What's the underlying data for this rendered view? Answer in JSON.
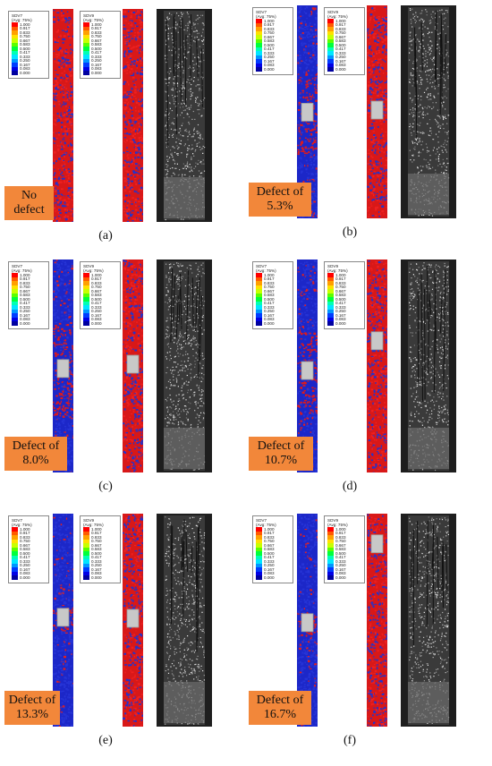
{
  "legend_scale": {
    "values": [
      "1.000",
      "0.917",
      "0.833",
      "0.750",
      "0.667",
      "0.583",
      "0.500",
      "0.417",
      "0.333",
      "0.250",
      "0.167",
      "0.083",
      "0.000"
    ],
    "colors": [
      "#ff0000",
      "#ff5a00",
      "#ffa000",
      "#ffe000",
      "#c8ff00",
      "#5aff00",
      "#00ff3c",
      "#00ffb4",
      "#00e6ff",
      "#0096ff",
      "#003cff",
      "#0000e6",
      "#0000a0"
    ],
    "avg_label": "(Avg: 75%)"
  },
  "panels": [
    {
      "id": "a",
      "sdv7_label": "SDV7",
      "sdv9_label": "SDV9",
      "defect_label": "No defect",
      "caption": "(a)",
      "has_defect": false,
      "red_band": [
        0.0,
        1.0
      ],
      "red_band_b": [
        0.0,
        1.0
      ],
      "sdv7_mostly_red": true
    },
    {
      "id": "b",
      "sdv7_label": "SDV7",
      "sdv9_label": "SDV9",
      "defect_label": "Defect of 5.3%",
      "caption": "(b)",
      "has_defect": true,
      "red_band": [
        0.32,
        0.7
      ],
      "red_band_b": [
        0.0,
        1.0
      ],
      "sdv7_mostly_red": false
    },
    {
      "id": "c",
      "sdv7_label": "SDV7",
      "sdv9_label": "SDV9",
      "defect_label": "Defect of 8.0%",
      "caption": "(c)",
      "has_defect": true,
      "red_band": [
        0.3,
        0.74
      ],
      "red_band_b": [
        0.0,
        1.0
      ],
      "sdv7_mostly_red": false
    },
    {
      "id": "d",
      "sdv7_label": "SDV7",
      "sdv9_label": "SDV9",
      "defect_label": "Defect of 10.7%",
      "caption": "(d)",
      "has_defect": true,
      "red_band": [
        0.34,
        0.72
      ],
      "red_band_b": [
        0.0,
        0.78
      ],
      "sdv7_mostly_red": false
    },
    {
      "id": "e",
      "sdv7_label": "SDV7",
      "sdv9_label": "SDV9",
      "defect_label": "Defect of 13.3%",
      "caption": "(e)",
      "has_defect": true,
      "red_band": [
        0.44,
        0.55
      ],
      "red_band_b": [
        0.0,
        1.0
      ],
      "sdv7_mostly_red": false
    },
    {
      "id": "f",
      "sdv7_label": "SDV7",
      "sdv9_label": "SDV9",
      "defect_label": "Defect of 16.7%",
      "caption": "(f)",
      "has_defect": true,
      "red_band": [
        0.46,
        0.58
      ],
      "red_band_b": [
        0.0,
        0.3
      ],
      "sdv7_mostly_red": false
    }
  ]
}
